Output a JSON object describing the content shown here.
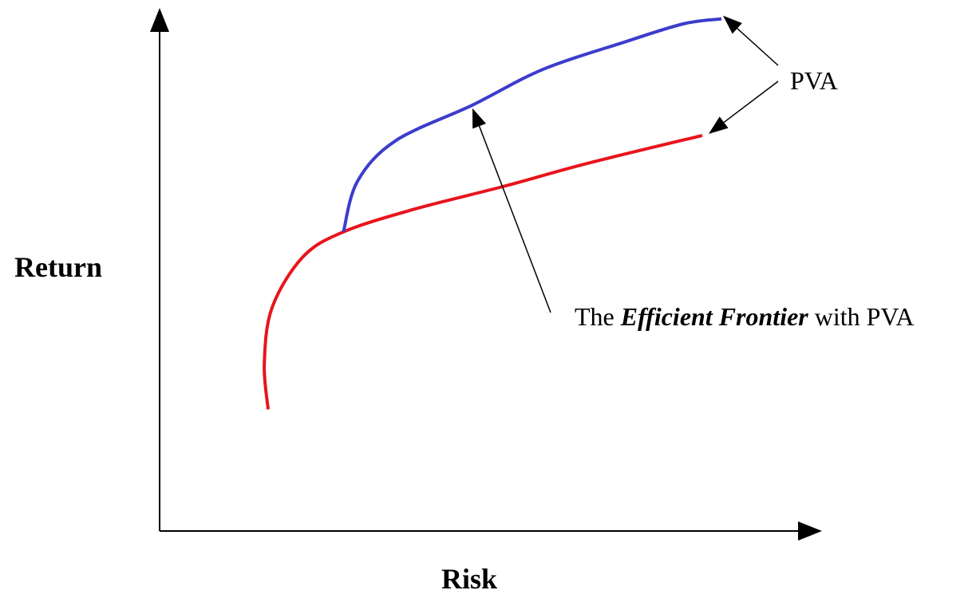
{
  "chart_data": {
    "type": "line",
    "title": "",
    "xlabel": "Risk",
    "ylabel": "Return",
    "xlim": [
      0,
      10
    ],
    "ylim": [
      0,
      10
    ],
    "grid": false,
    "legend": "none",
    "axis_ticks": false,
    "series": [
      {
        "color": "#e8141c",
        "points": [
          {
            "x": 1.7,
            "y": 2.4
          },
          {
            "x": 1.64,
            "y": 3.3
          },
          {
            "x": 1.76,
            "y": 4.4
          },
          {
            "x": 2.24,
            "y": 5.4
          },
          {
            "x": 2.88,
            "y": 5.9
          },
          {
            "x": 4.0,
            "y": 6.35
          },
          {
            "x": 5.4,
            "y": 6.8
          },
          {
            "x": 6.7,
            "y": 7.25
          },
          {
            "x": 8.5,
            "y": 7.8
          }
        ]
      },
      {
        "color": "#3c3ccd",
        "points": [
          {
            "x": 2.88,
            "y": 5.9
          },
          {
            "x": 3.1,
            "y": 6.9
          },
          {
            "x": 3.7,
            "y": 7.7
          },
          {
            "x": 4.9,
            "y": 8.4
          },
          {
            "x": 6.0,
            "y": 9.1
          },
          {
            "x": 7.3,
            "y": 9.65
          },
          {
            "x": 8.2,
            "y": 10.0
          },
          {
            "x": 8.8,
            "y": 10.1
          }
        ]
      }
    ],
    "annotations": [
      {
        "name": "pva",
        "text": "PVA",
        "targets": [
          {
            "x": 8.8,
            "y": 10.1
          },
          {
            "x": 8.5,
            "y": 7.8
          }
        ]
      },
      {
        "name": "efficient-frontier",
        "text_before": "The ",
        "text_emphasis": "Efficient Frontier",
        "text_after": " with PVA",
        "target": {
          "x": 4.9,
          "y": 8.4
        }
      }
    ]
  }
}
